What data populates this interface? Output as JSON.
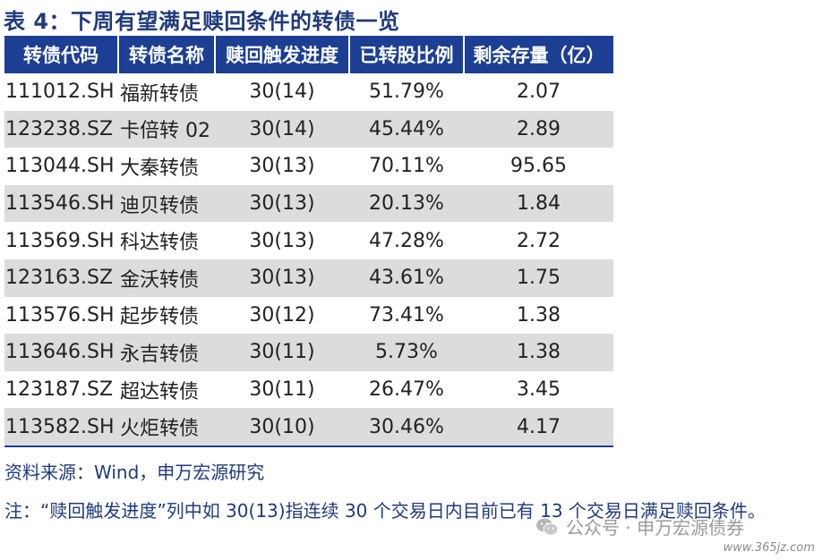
{
  "title": "表 4：下周有望满足赎回条件的转债一览",
  "table": {
    "headers": [
      "转债代码",
      "转债名称",
      "赎回触发进度",
      "已转股比例",
      "剩余存量（亿）"
    ],
    "rows": [
      [
        "111012.SH",
        "福新转债",
        "30(14)",
        "51.79%",
        "2.07"
      ],
      [
        "123238.SZ",
        "卡倍转 02",
        "30(14)",
        "45.44%",
        "2.89"
      ],
      [
        "113044.SH",
        "大秦转债",
        "30(13)",
        "70.11%",
        "95.65"
      ],
      [
        "113546.SH",
        "迪贝转债",
        "30(13)",
        "20.13%",
        "1.84"
      ],
      [
        "113569.SH",
        "科达转债",
        "30(13)",
        "47.28%",
        "2.72"
      ],
      [
        "123163.SZ",
        "金沃转债",
        "30(13)",
        "43.61%",
        "1.75"
      ],
      [
        "113576.SH",
        "起步转债",
        "30(12)",
        "73.41%",
        "1.38"
      ],
      [
        "113646.SH",
        "永吉转债",
        "30(11)",
        "5.73%",
        "1.38"
      ],
      [
        "123187.SZ",
        "超达转债",
        "30(11)",
        "26.47%",
        "3.45"
      ],
      [
        "113582.SH",
        "火炬转债",
        "30(10)",
        "30.46%",
        "4.17"
      ]
    ]
  },
  "source": "资料来源：Wind，申万宏源研究",
  "note": "注：“赎回触发进度”列中如 30(13)指连续 30 个交易日内目前已有 13 个交易日满足赎回条件。",
  "watermark": {
    "icon": "wechat-icon",
    "text": "公众号 · 申万宏源债券"
  },
  "site": "www.365jz.com",
  "colors": {
    "header_bg": "#1C3F94",
    "title_text": "#1F3A7D",
    "alt_row": "#DCDCDC"
  }
}
